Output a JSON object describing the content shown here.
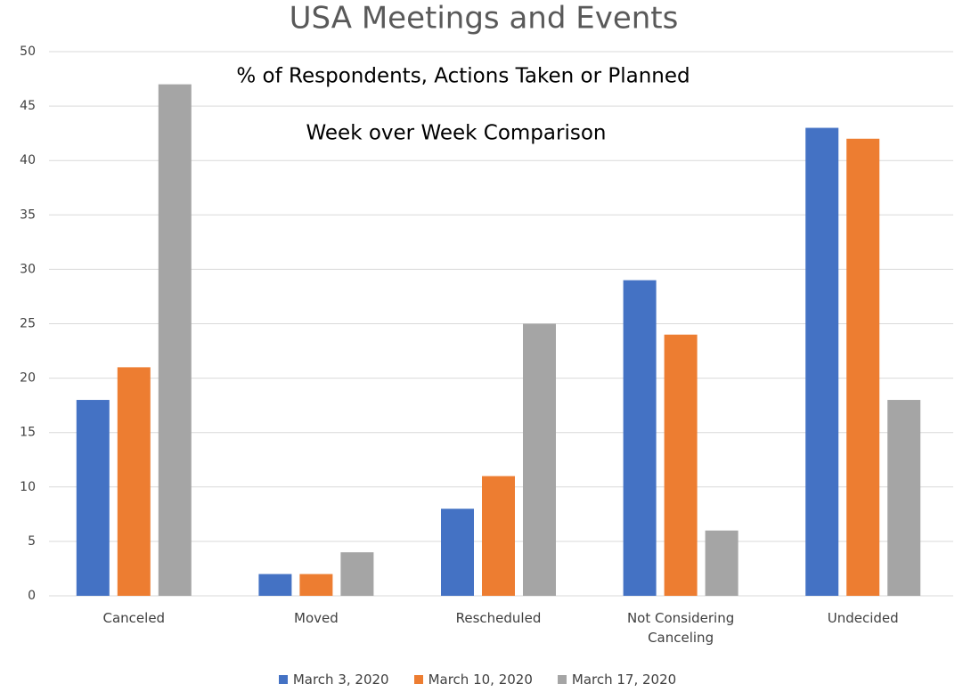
{
  "chart_data": {
    "type": "bar",
    "title": "USA Meetings and Events",
    "annotations": [
      "% of Respondents, Actions Taken or Planned",
      "Week over Week Comparison"
    ],
    "categories": [
      "Canceled",
      "Moved",
      "Rescheduled",
      "Not Considering Canceling",
      "Undecided"
    ],
    "series": [
      {
        "name": "March 3, 2020",
        "color": "#4472c4",
        "values": [
          18,
          2,
          8,
          29,
          43
        ]
      },
      {
        "name": "March 10, 2020",
        "color": "#ed7d31",
        "values": [
          21,
          2,
          11,
          24,
          42
        ]
      },
      {
        "name": "March 17, 2020",
        "color": "#a5a5a5",
        "values": [
          47,
          4,
          25,
          6,
          18
        ]
      }
    ],
    "ylim": [
      0,
      50
    ],
    "yticks": [
      0,
      5,
      10,
      15,
      20,
      25,
      30,
      35,
      40,
      45,
      50
    ],
    "grid": true,
    "legend": "bottom"
  }
}
